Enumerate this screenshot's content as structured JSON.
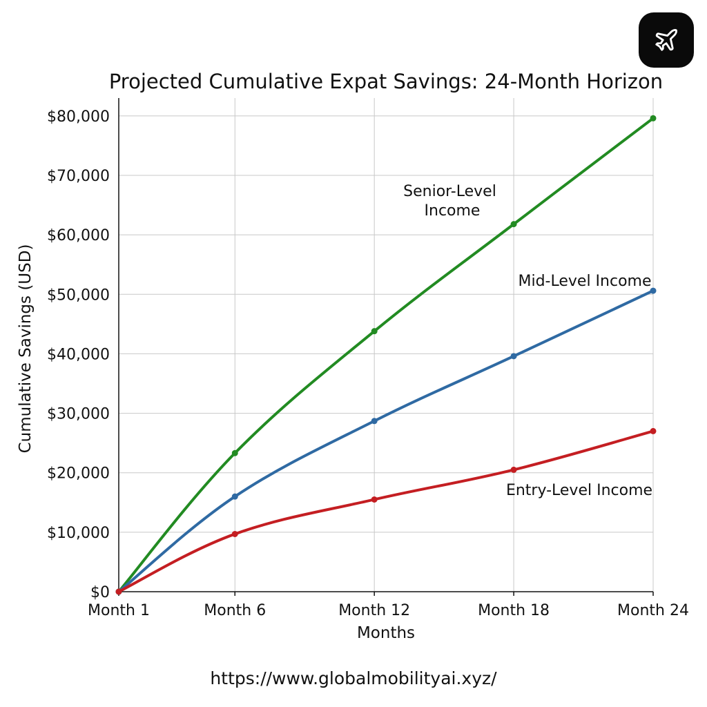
{
  "chart_data": {
    "type": "line",
    "title": "Projected Cumulative Expat Savings: 24-Month Horizon",
    "xlabel": "Months",
    "ylabel": "Cumulative Savings (USD)",
    "categories": [
      "Month 1",
      "Month 6",
      "Month 12",
      "Month 18",
      "Month 24"
    ],
    "x": [
      1,
      6,
      12,
      18,
      24
    ],
    "xlim": [
      1,
      24
    ],
    "ylim": [
      0,
      83000
    ],
    "yticks": [
      0,
      10000,
      20000,
      30000,
      40000,
      50000,
      60000,
      70000,
      80000
    ],
    "ytick_labels": [
      "$0",
      "$10,000",
      "$20,000",
      "$30,000",
      "$40,000",
      "$50,000",
      "$60,000",
      "$70,000",
      "$80,000"
    ],
    "grid": true,
    "legend": "none",
    "series": [
      {
        "name": "Senior-Level Income",
        "color": "#228b22",
        "values": [
          0,
          23300,
          43800,
          61800,
          79600
        ]
      },
      {
        "name": "Mid-Level Income",
        "color": "#2f6aa3",
        "values": [
          0,
          16000,
          28700,
          39600,
          50600
        ]
      },
      {
        "name": "Entry-Level Income",
        "color": "#c41e22",
        "values": [
          0,
          9700,
          15500,
          20500,
          27000
        ]
      }
    ]
  },
  "badge": {
    "icon": "airplane-icon"
  },
  "footer": {
    "url": "https://www.globalmobilityai.xyz/"
  }
}
